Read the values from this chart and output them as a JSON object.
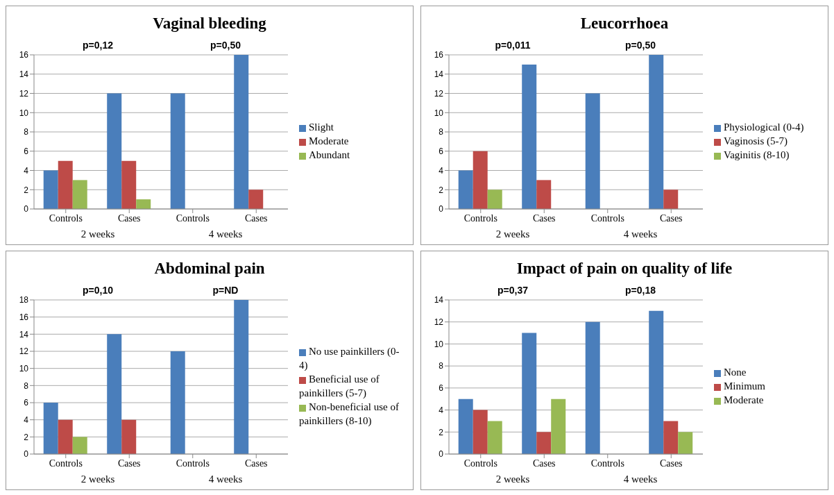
{
  "chart_data": [
    {
      "type": "bar",
      "title": "Vaginal bleeding",
      "categories": [
        "Controls",
        "Cases",
        "Controls",
        "Cases"
      ],
      "series": [
        {
          "name": "Slight",
          "color": "#4a7ebb",
          "values": [
            4,
            12,
            12,
            16
          ]
        },
        {
          "name": "Moderate",
          "color": "#be4b48",
          "values": [
            5,
            5,
            0,
            2
          ]
        },
        {
          "name": "Abundant",
          "color": "#98b954",
          "values": [
            3,
            1,
            0,
            0
          ]
        }
      ],
      "ylim": [
        0,
        16
      ],
      "yticks": [
        0,
        2,
        4,
        6,
        8,
        10,
        12,
        14,
        16
      ],
      "grid": "y",
      "legend": "right",
      "annotations": [
        "p=0,12",
        "p=0,50",
        "2 weeks",
        "4 weeks"
      ]
    },
    {
      "type": "bar",
      "title": "Leucorrhoea",
      "categories": [
        "Controls",
        "Cases",
        "Controls",
        "Cases"
      ],
      "series": [
        {
          "name": "Physiological (0-4)",
          "color": "#4a7ebb",
          "values": [
            4,
            15,
            12,
            16
          ]
        },
        {
          "name": "Vaginosis (5-7)",
          "color": "#be4b48",
          "values": [
            6,
            3,
            0,
            2
          ]
        },
        {
          "name": "Vaginitis (8-10)",
          "color": "#98b954",
          "values": [
            2,
            0,
            0,
            0
          ]
        }
      ],
      "ylim": [
        0,
        16
      ],
      "yticks": [
        0,
        2,
        4,
        6,
        8,
        10,
        12,
        14,
        16
      ],
      "grid": "y",
      "legend": "right",
      "annotations": [
        "p=0,011",
        "p=0,50",
        "2 weeks",
        "4 weeks"
      ]
    },
    {
      "type": "bar",
      "title": "Abdominal pain",
      "categories": [
        "Controls",
        "Cases",
        "Controls",
        "Cases"
      ],
      "series": [
        {
          "name": "No use painkillers (0-4)",
          "color": "#4a7ebb",
          "values": [
            6,
            14,
            12,
            18
          ]
        },
        {
          "name": "Beneficial use of painkillers (5-7)",
          "color": "#be4b48",
          "values": [
            4,
            4,
            0,
            0
          ]
        },
        {
          "name": "Non-beneficial use of painkillers (8-10)",
          "color": "#98b954",
          "values": [
            2,
            0,
            0,
            0
          ]
        }
      ],
      "ylim": [
        0,
        18
      ],
      "yticks": [
        0,
        2,
        4,
        6,
        8,
        10,
        12,
        14,
        16,
        18
      ],
      "grid": "y",
      "legend": "right",
      "annotations": [
        "p=0,10",
        "p=ND",
        "2 weeks",
        "4 weeks"
      ]
    },
    {
      "type": "bar",
      "title": "Impact of pain on quality of life",
      "categories": [
        "Controls",
        "Cases",
        "Controls",
        "Cases"
      ],
      "series": [
        {
          "name": "None",
          "color": "#4a7ebb",
          "values": [
            5,
            11,
            12,
            13
          ]
        },
        {
          "name": "Minimum",
          "color": "#be4b48",
          "values": [
            4,
            2,
            0,
            3
          ]
        },
        {
          "name": "Moderate",
          "color": "#98b954",
          "values": [
            3,
            5,
            0,
            2
          ]
        }
      ],
      "ylim": [
        0,
        14
      ],
      "yticks": [
        0,
        2,
        4,
        6,
        8,
        10,
        12,
        14
      ],
      "grid": "y",
      "legend": "right",
      "annotations": [
        "p=0,37",
        "p=0,18",
        "2 weeks",
        "4 weeks"
      ]
    }
  ]
}
